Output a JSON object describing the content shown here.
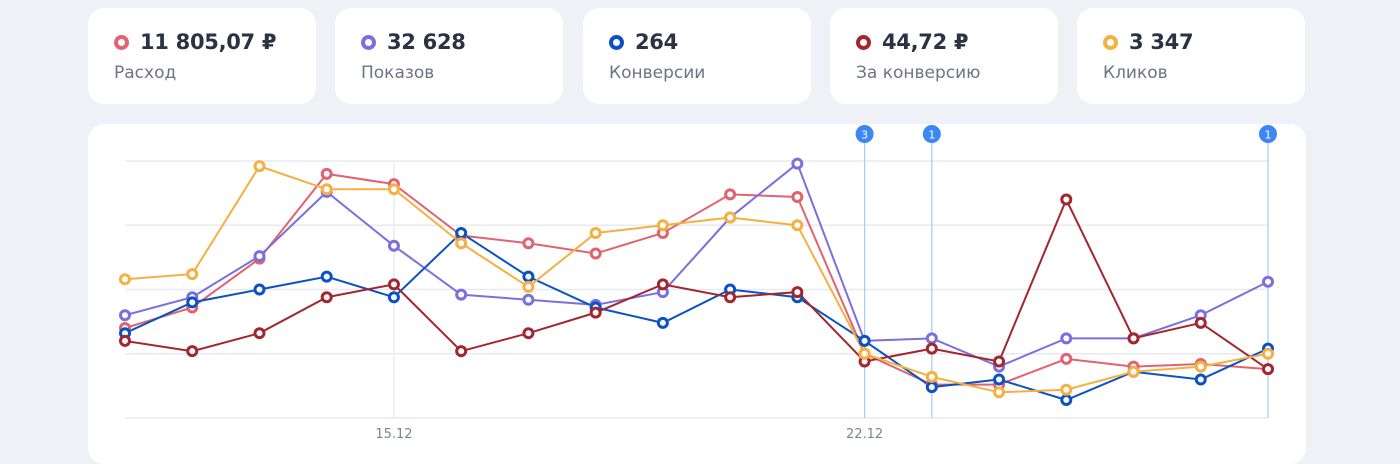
{
  "metrics": [
    {
      "value": "11 805,07 ₽",
      "label": "Расход",
      "color": "#e0636f"
    },
    {
      "value": "32 628",
      "label": "Показов",
      "color": "#7b6fe0"
    },
    {
      "value": "264",
      "label": "Конверсии",
      "color": "#0a52c4"
    },
    {
      "value": "44,72 ₽",
      "label": "За конверсию",
      "color": "#a3262f"
    },
    {
      "value": "3 347",
      "label": "Кликов",
      "color": "#f5b041"
    }
  ],
  "chart_data": {
    "type": "line",
    "title": "",
    "xlabel": "",
    "ylabel": "",
    "x_tick_labels": [
      {
        "index": 4,
        "label": "15.12"
      },
      {
        "index": 11,
        "label": "22.12"
      }
    ],
    "point_count": 18,
    "ylim": [
      0,
      100
    ],
    "y_axis_labels_shown": false,
    "grid": true,
    "legend": "metric cards above chart",
    "series": [
      {
        "metric": "Расход",
        "color": "#e0636f",
        "values": [
          35,
          43,
          62,
          95,
          91,
          71,
          68,
          64,
          72,
          87,
          86,
          25,
          13,
          13,
          23,
          20,
          21,
          19
        ]
      },
      {
        "metric": "Показов",
        "color": "#7b6fe0",
        "values": [
          40,
          47,
          63,
          88,
          67,
          48,
          46,
          44,
          49,
          78,
          99,
          30,
          31,
          20,
          31,
          31,
          40,
          53
        ]
      },
      {
        "metric": "Конверсии",
        "color": "#0a52c4",
        "values": [
          33,
          45,
          50,
          55,
          47,
          72,
          55,
          43,
          37,
          50,
          47,
          30,
          12,
          15,
          7,
          18,
          15,
          27
        ]
      },
      {
        "metric": "За конверсию",
        "color": "#a3262f",
        "values": [
          30,
          26,
          33,
          47,
          52,
          26,
          33,
          41,
          52,
          47,
          49,
          22,
          27,
          22,
          85,
          31,
          37,
          19
        ]
      },
      {
        "metric": "Кликов",
        "color": "#f5b041",
        "values": [
          54,
          56,
          98,
          89,
          89,
          68,
          51,
          72,
          75,
          78,
          75,
          25,
          16,
          10,
          11,
          18,
          20,
          25
        ]
      }
    ],
    "event_markers": [
      {
        "index": 11,
        "count": "3"
      },
      {
        "index": 12,
        "count": "1"
      },
      {
        "index": 17,
        "count": "1"
      }
    ],
    "marker_color": "#3d86f5"
  }
}
